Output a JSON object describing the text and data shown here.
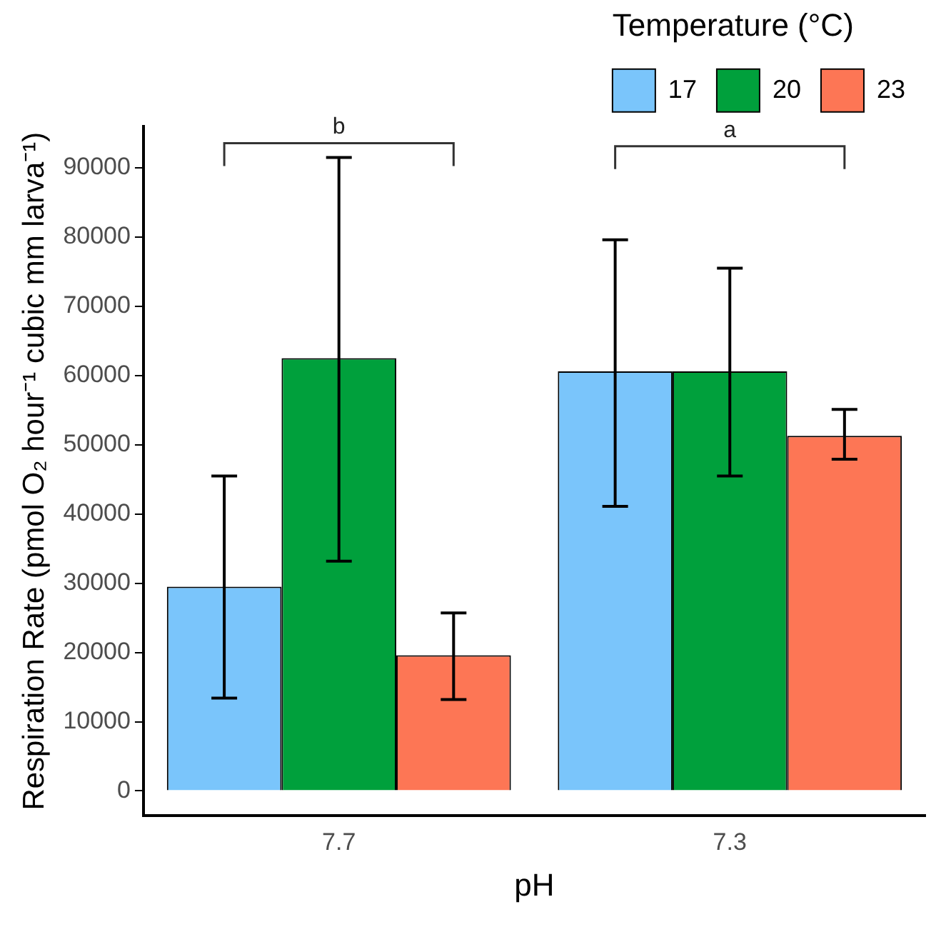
{
  "chart_data": {
    "type": "bar",
    "xlabel": "pH",
    "ylabel": "Respiration Rate (pmol O₂ hour⁻¹ cubic mm larva⁻¹)",
    "legend_title": "Temperature (°C)",
    "categories": [
      "7.7",
      "7.3"
    ],
    "series": [
      {
        "name": "17",
        "color": "#7ac5fb",
        "values": [
          29500,
          60600
        ],
        "errors": [
          [
            13400,
            45500
          ],
          [
            41100,
            79600
          ]
        ]
      },
      {
        "name": "20",
        "color": "#00a03c",
        "values": [
          62500,
          60600
        ],
        "errors": [
          [
            33200,
            91500
          ],
          [
            45500,
            75500
          ]
        ]
      },
      {
        "name": "23",
        "color": "#fd7655",
        "values": [
          19600,
          51300
        ],
        "errors": [
          [
            13200,
            25700
          ],
          [
            47900,
            55100
          ]
        ]
      }
    ],
    "ylim": [
      -3600,
      96000
    ],
    "yticks": [
      0,
      10000,
      20000,
      30000,
      40000,
      50000,
      60000,
      70000,
      80000,
      90000
    ],
    "grid": false,
    "legend": "top",
    "annotations": [
      "b",
      "a"
    ]
  }
}
